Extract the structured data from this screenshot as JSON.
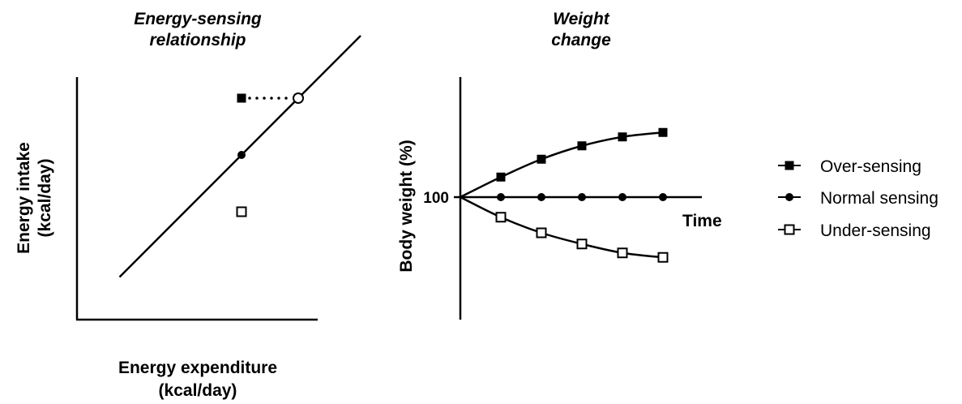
{
  "chart_data": [
    {
      "type": "scatter",
      "title_lines": [
        "Energy-sensing",
        "relationship"
      ],
      "xlabel_lines": [
        "Energy expenditure",
        "(kcal/day)"
      ],
      "ylabel_lines": [
        "Energy intake",
        "(kcal/day)"
      ],
      "identity_line": {
        "x": [
          0.15,
          1.0
        ],
        "y": [
          0.15,
          1.0
        ]
      },
      "points": [
        {
          "name": "Over-sensing",
          "x": 0.58,
          "y": 0.78,
          "marker": "filled-square"
        },
        {
          "name": "Normal sensing",
          "x": 0.58,
          "y": 0.58,
          "marker": "filled-circle"
        },
        {
          "name": "Under-sensing",
          "x": 0.58,
          "y": 0.38,
          "marker": "open-square"
        },
        {
          "name": "",
          "x": 0.78,
          "y": 0.78,
          "marker": "open-circle"
        }
      ],
      "connector": {
        "from": [
          0.58,
          0.78
        ],
        "to": [
          0.78,
          0.78
        ],
        "style": "dotted"
      }
    },
    {
      "type": "line",
      "title_lines": [
        "Weight",
        "change"
      ],
      "xlabel": "Time",
      "ylabel": "Body weight (%)",
      "ytick_label": "100",
      "ytick_value": 100,
      "x": [
        0,
        1,
        2,
        3,
        4,
        5
      ],
      "series": [
        {
          "name": "Over-sensing",
          "marker": "filled-square",
          "values": [
            100,
            109,
            117,
            123,
            127,
            129
          ]
        },
        {
          "name": "Normal sensing",
          "marker": "filled-circle",
          "values": [
            100,
            100,
            100,
            100,
            100,
            100
          ]
        },
        {
          "name": "Under-sensing",
          "marker": "open-square",
          "values": [
            100,
            91,
            84,
            79,
            75,
            73
          ]
        }
      ],
      "legend_position": "right"
    }
  ],
  "legend": {
    "items": [
      {
        "label": "Over-sensing",
        "marker": "filled-square"
      },
      {
        "label": "Normal sensing",
        "marker": "filled-circle"
      },
      {
        "label": "Under-sensing",
        "marker": "open-square"
      }
    ]
  },
  "colors": {
    "ink": "#000000",
    "background": "#ffffff"
  }
}
